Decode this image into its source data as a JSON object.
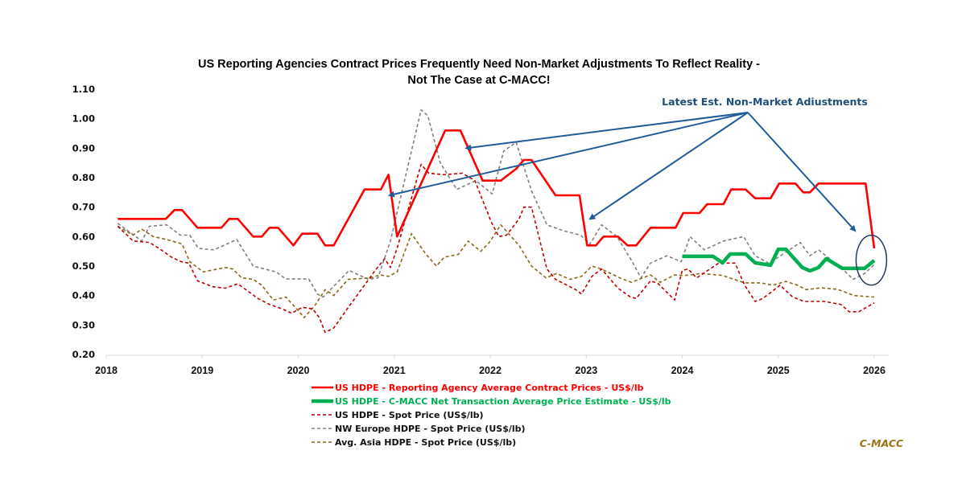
{
  "chart_data": {
    "type": "line",
    "title_lines": [
      "US Reporting Agencies Contract Prices Frequently Need Non-Market Adjustments To Reflect Reality -",
      "Not The Case at C-MACC!"
    ],
    "xlabel": "",
    "ylabel": "",
    "xlim": [
      2018,
      2026
    ],
    "ylim": [
      0.2,
      1.1
    ],
    "x_ticks": [
      "2018",
      "2019",
      "2020",
      "2021",
      "2022",
      "2023",
      "2024",
      "2025",
      "2026"
    ],
    "y_ticks": [
      "1.10",
      "1.00",
      "0.90",
      "0.80",
      "0.70",
      "0.60",
      "0.50",
      "0.40",
      "0.30",
      "0.20"
    ],
    "grid": false,
    "legend_position": "bottom-center",
    "annotation": "Latest Est. Non-Market Adiustments",
    "annotation_arrow_targets": [
      {
        "x": 2021.75,
        "y": 0.9
      },
      {
        "x": 2020.95,
        "y": 0.74
      },
      {
        "x": 2023.04,
        "y": 0.66
      },
      {
        "x": 2025.8,
        "y": 0.62
      }
    ],
    "highlight_circle": {
      "x": 2025.97,
      "y": 0.52
    },
    "source_label": "C-MACC",
    "series": [
      {
        "name": "US HDPE - Reporting Agency Average Contract Prices - US$/lb",
        "color": "#ff0000",
        "style": "solid",
        "weight": "normal",
        "points": [
          [
            2018.12,
            0.66
          ],
          [
            2018.62,
            0.66
          ],
          [
            2018.71,
            0.69
          ],
          [
            2018.79,
            0.69
          ],
          [
            2018.95,
            0.63
          ],
          [
            2019.2,
            0.63
          ],
          [
            2019.28,
            0.66
          ],
          [
            2019.37,
            0.66
          ],
          [
            2019.53,
            0.6
          ],
          [
            2019.62,
            0.6
          ],
          [
            2019.7,
            0.63
          ],
          [
            2019.79,
            0.63
          ],
          [
            2019.95,
            0.57
          ],
          [
            2020.04,
            0.61
          ],
          [
            2020.2,
            0.61
          ],
          [
            2020.28,
            0.57
          ],
          [
            2020.37,
            0.57
          ],
          [
            2020.69,
            0.76
          ],
          [
            2020.86,
            0.76
          ],
          [
            2020.94,
            0.81
          ],
          [
            2021.03,
            0.6
          ],
          [
            2021.53,
            0.96
          ],
          [
            2021.69,
            0.96
          ],
          [
            2021.92,
            0.79
          ],
          [
            2022.11,
            0.79
          ],
          [
            2022.27,
            0.83
          ],
          [
            2022.35,
            0.86
          ],
          [
            2022.43,
            0.86
          ],
          [
            2022.68,
            0.74
          ],
          [
            2022.93,
            0.74
          ],
          [
            2023.01,
            0.57
          ],
          [
            2023.1,
            0.57
          ],
          [
            2023.18,
            0.6
          ],
          [
            2023.33,
            0.6
          ],
          [
            2023.43,
            0.57
          ],
          [
            2023.52,
            0.57
          ],
          [
            2023.67,
            0.63
          ],
          [
            2023.93,
            0.63
          ],
          [
            2024.01,
            0.68
          ],
          [
            2024.18,
            0.68
          ],
          [
            2024.26,
            0.71
          ],
          [
            2024.43,
            0.71
          ],
          [
            2024.51,
            0.76
          ],
          [
            2024.66,
            0.76
          ],
          [
            2024.76,
            0.73
          ],
          [
            2024.92,
            0.73
          ],
          [
            2025.01,
            0.78
          ],
          [
            2025.18,
            0.78
          ],
          [
            2025.26,
            0.75
          ],
          [
            2025.33,
            0.75
          ],
          [
            2025.42,
            0.78
          ],
          [
            2025.91,
            0.78
          ],
          [
            2026.0,
            0.56
          ]
        ]
      },
      {
        "name": "US HDPE - C-MACC Net Transaction Average Price Estimate - US$/lb",
        "color": "#00b050",
        "style": "solid",
        "weight": "thick",
        "points": [
          [
            2024.0,
            0.533
          ],
          [
            2024.32,
            0.533
          ],
          [
            2024.42,
            0.511
          ],
          [
            2024.5,
            0.541
          ],
          [
            2024.66,
            0.541
          ],
          [
            2024.76,
            0.511
          ],
          [
            2024.92,
            0.503
          ],
          [
            2025.0,
            0.557
          ],
          [
            2025.08,
            0.557
          ],
          [
            2025.25,
            0.495
          ],
          [
            2025.33,
            0.484
          ],
          [
            2025.42,
            0.495
          ],
          [
            2025.5,
            0.525
          ],
          [
            2025.67,
            0.492
          ],
          [
            2025.9,
            0.492
          ],
          [
            2026.0,
            0.519
          ]
        ]
      },
      {
        "name": "US HDPE - Spot Price (US$/lb)",
        "color": "#c00000",
        "style": "dashed",
        "weight": "normal",
        "points": [
          [
            2018.12,
            0.635
          ],
          [
            2018.28,
            0.585
          ],
          [
            2018.45,
            0.58
          ],
          [
            2018.55,
            0.56
          ],
          [
            2018.68,
            0.53
          ],
          [
            2018.78,
            0.515
          ],
          [
            2018.86,
            0.51
          ],
          [
            2018.95,
            0.45
          ],
          [
            2019.11,
            0.43
          ],
          [
            2019.24,
            0.425
          ],
          [
            2019.37,
            0.44
          ],
          [
            2019.58,
            0.39
          ],
          [
            2019.7,
            0.37
          ],
          [
            2019.83,
            0.355
          ],
          [
            2019.93,
            0.34
          ],
          [
            2020.04,
            0.36
          ],
          [
            2020.15,
            0.355
          ],
          [
            2020.22,
            0.325
          ],
          [
            2020.28,
            0.275
          ],
          [
            2020.37,
            0.29
          ],
          [
            2020.5,
            0.35
          ],
          [
            2020.79,
            0.48
          ],
          [
            2020.9,
            0.525
          ],
          [
            2020.96,
            0.495
          ],
          [
            2021.03,
            0.56
          ],
          [
            2021.28,
            0.845
          ],
          [
            2021.36,
            0.815
          ],
          [
            2021.52,
            0.81
          ],
          [
            2021.71,
            0.815
          ],
          [
            2021.84,
            0.79
          ],
          [
            2022.01,
            0.65
          ],
          [
            2022.09,
            0.6
          ],
          [
            2022.17,
            0.605
          ],
          [
            2022.3,
            0.66
          ],
          [
            2022.35,
            0.7
          ],
          [
            2022.43,
            0.7
          ],
          [
            2022.59,
            0.49
          ],
          [
            2022.68,
            0.455
          ],
          [
            2022.89,
            0.42
          ],
          [
            2022.95,
            0.405
          ],
          [
            2023.06,
            0.465
          ],
          [
            2023.16,
            0.49
          ],
          [
            2023.33,
            0.425
          ],
          [
            2023.46,
            0.395
          ],
          [
            2023.52,
            0.39
          ],
          [
            2023.67,
            0.45
          ],
          [
            2023.75,
            0.44
          ],
          [
            2023.92,
            0.385
          ],
          [
            2024.0,
            0.485
          ],
          [
            2024.06,
            0.49
          ],
          [
            2024.15,
            0.46
          ],
          [
            2024.38,
            0.51
          ],
          [
            2024.55,
            0.51
          ],
          [
            2024.65,
            0.435
          ],
          [
            2024.76,
            0.38
          ],
          [
            2024.84,
            0.39
          ],
          [
            2025.02,
            0.435
          ],
          [
            2025.15,
            0.395
          ],
          [
            2025.27,
            0.38
          ],
          [
            2025.48,
            0.38
          ],
          [
            2025.65,
            0.37
          ],
          [
            2025.74,
            0.345
          ],
          [
            2025.84,
            0.345
          ],
          [
            2026.0,
            0.375
          ]
        ]
      },
      {
        "name": "NW Europe HDPE - Spot Price (US$/lb)",
        "color": "#808080",
        "style": "dashed",
        "weight": "normal",
        "points": [
          [
            2018.12,
            0.645
          ],
          [
            2018.37,
            0.585
          ],
          [
            2018.45,
            0.635
          ],
          [
            2018.63,
            0.64
          ],
          [
            2018.77,
            0.605
          ],
          [
            2018.87,
            0.605
          ],
          [
            2018.96,
            0.56
          ],
          [
            2019.12,
            0.555
          ],
          [
            2019.36,
            0.59
          ],
          [
            2019.53,
            0.5
          ],
          [
            2019.77,
            0.48
          ],
          [
            2019.87,
            0.456
          ],
          [
            2020.11,
            0.456
          ],
          [
            2020.2,
            0.405
          ],
          [
            2020.26,
            0.395
          ],
          [
            2020.53,
            0.485
          ],
          [
            2020.73,
            0.455
          ],
          [
            2020.83,
            0.46
          ],
          [
            2020.96,
            0.585
          ],
          [
            2021.28,
            1.03
          ],
          [
            2021.35,
            1.01
          ],
          [
            2021.48,
            0.85
          ],
          [
            2021.65,
            0.76
          ],
          [
            2021.85,
            0.79
          ],
          [
            2022.02,
            0.745
          ],
          [
            2022.14,
            0.89
          ],
          [
            2022.27,
            0.92
          ],
          [
            2022.43,
            0.755
          ],
          [
            2022.59,
            0.64
          ],
          [
            2022.76,
            0.62
          ],
          [
            2022.94,
            0.605
          ],
          [
            2023.04,
            0.575
          ],
          [
            2023.16,
            0.64
          ],
          [
            2023.32,
            0.6
          ],
          [
            2023.47,
            0.52
          ],
          [
            2023.57,
            0.46
          ],
          [
            2023.67,
            0.51
          ],
          [
            2023.84,
            0.535
          ],
          [
            2023.99,
            0.515
          ],
          [
            2024.08,
            0.6
          ],
          [
            2024.23,
            0.555
          ],
          [
            2024.43,
            0.585
          ],
          [
            2024.64,
            0.6
          ],
          [
            2024.76,
            0.535
          ],
          [
            2024.9,
            0.51
          ],
          [
            2025.0,
            0.53
          ],
          [
            2025.23,
            0.58
          ],
          [
            2025.33,
            0.535
          ],
          [
            2025.42,
            0.555
          ],
          [
            2025.67,
            0.49
          ],
          [
            2025.78,
            0.455
          ],
          [
            2025.9,
            0.475
          ],
          [
            2026.0,
            0.505
          ]
        ]
      },
      {
        "name": "Avg. Asia HDPE - Spot Price (US$/lb)",
        "color": "#8b6914",
        "style": "dashed",
        "weight": "normal",
        "points": [
          [
            2018.12,
            0.635
          ],
          [
            2018.28,
            0.605
          ],
          [
            2018.37,
            0.625
          ],
          [
            2018.49,
            0.6
          ],
          [
            2018.63,
            0.59
          ],
          [
            2018.79,
            0.575
          ],
          [
            2018.87,
            0.515
          ],
          [
            2019.01,
            0.48
          ],
          [
            2019.24,
            0.495
          ],
          [
            2019.32,
            0.49
          ],
          [
            2019.41,
            0.46
          ],
          [
            2019.53,
            0.455
          ],
          [
            2019.62,
            0.435
          ],
          [
            2019.74,
            0.385
          ],
          [
            2019.87,
            0.395
          ],
          [
            2020.01,
            0.345
          ],
          [
            2020.06,
            0.325
          ],
          [
            2020.17,
            0.365
          ],
          [
            2020.28,
            0.42
          ],
          [
            2020.37,
            0.4
          ],
          [
            2020.52,
            0.455
          ],
          [
            2020.75,
            0.46
          ],
          [
            2020.85,
            0.47
          ],
          [
            2020.94,
            0.465
          ],
          [
            2021.03,
            0.48
          ],
          [
            2021.18,
            0.61
          ],
          [
            2021.33,
            0.54
          ],
          [
            2021.44,
            0.5
          ],
          [
            2021.52,
            0.53
          ],
          [
            2021.67,
            0.54
          ],
          [
            2021.77,
            0.585
          ],
          [
            2021.9,
            0.55
          ],
          [
            2021.99,
            0.58
          ],
          [
            2022.11,
            0.64
          ],
          [
            2022.3,
            0.57
          ],
          [
            2022.43,
            0.5
          ],
          [
            2022.58,
            0.46
          ],
          [
            2022.69,
            0.475
          ],
          [
            2022.83,
            0.455
          ],
          [
            2022.95,
            0.465
          ],
          [
            2023.06,
            0.5
          ],
          [
            2023.16,
            0.49
          ],
          [
            2023.35,
            0.46
          ],
          [
            2023.47,
            0.445
          ],
          [
            2023.67,
            0.47
          ],
          [
            2023.77,
            0.445
          ],
          [
            2023.92,
            0.47
          ],
          [
            2024.03,
            0.468
          ],
          [
            2024.2,
            0.475
          ],
          [
            2024.42,
            0.468
          ],
          [
            2024.65,
            0.443
          ],
          [
            2024.82,
            0.443
          ],
          [
            2024.94,
            0.435
          ],
          [
            2025.08,
            0.448
          ],
          [
            2025.2,
            0.435
          ],
          [
            2025.29,
            0.42
          ],
          [
            2025.45,
            0.426
          ],
          [
            2025.62,
            0.421
          ],
          [
            2025.79,
            0.4
          ],
          [
            2026.0,
            0.395
          ]
        ]
      }
    ]
  }
}
